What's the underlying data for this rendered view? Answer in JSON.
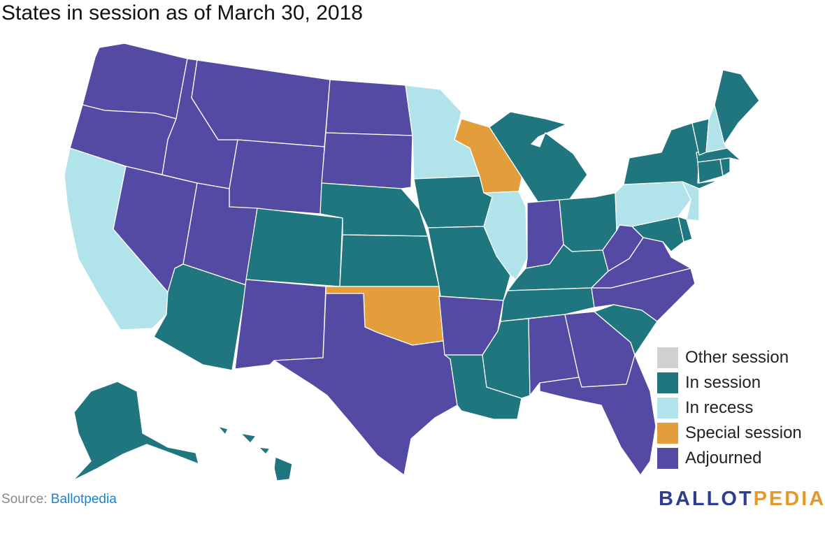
{
  "title": "States in session as of March 30, 2018",
  "colors": {
    "other": "#d0d0d0",
    "in_session": "#20767e",
    "in_recess": "#b0e3ea",
    "special": "#e39d3a",
    "adjourned": "#534aa3"
  },
  "legend": [
    {
      "label": "Other session",
      "status": "other"
    },
    {
      "label": "In session",
      "status": "in_session"
    },
    {
      "label": "In recess",
      "status": "in_recess"
    },
    {
      "label": "Special session",
      "status": "special"
    },
    {
      "label": "Adjourned",
      "status": "adjourned"
    }
  ],
  "states": {
    "WA": "adjourned",
    "OR": "adjourned",
    "CA": "in_recess",
    "NV": "adjourned",
    "ID": "adjourned",
    "MT": "adjourned",
    "WY": "adjourned",
    "UT": "adjourned",
    "AZ": "in_session",
    "CO": "in_session",
    "NM": "adjourned",
    "ND": "adjourned",
    "SD": "adjourned",
    "NE": "in_session",
    "KS": "in_session",
    "OK": "special",
    "TX": "adjourned",
    "MN": "in_recess",
    "IA": "in_session",
    "MO": "in_session",
    "AR": "adjourned",
    "LA": "in_session",
    "WI": "special",
    "IL": "in_recess",
    "MI": "in_session",
    "IN": "adjourned",
    "OH": "in_session",
    "KY": "in_session",
    "TN": "in_session",
    "MS": "in_session",
    "AL": "adjourned",
    "GA": "adjourned",
    "FL": "adjourned",
    "SC": "in_session",
    "NC": "adjourned",
    "VA": "adjourned",
    "WV": "adjourned",
    "MD": "in_session",
    "DE": "in_session",
    "PA": "in_recess",
    "NJ": "in_recess",
    "NY": "in_session",
    "CT": "in_session",
    "RI": "in_session",
    "MA": "in_session",
    "VT": "in_session",
    "NH": "in_recess",
    "ME": "in_session",
    "AK": "in_session",
    "HI": "in_session"
  },
  "source": {
    "label": "Source:",
    "link": "Ballotpedia"
  },
  "logo": {
    "part1": "BALLOT",
    "part2": "PEDIA"
  }
}
